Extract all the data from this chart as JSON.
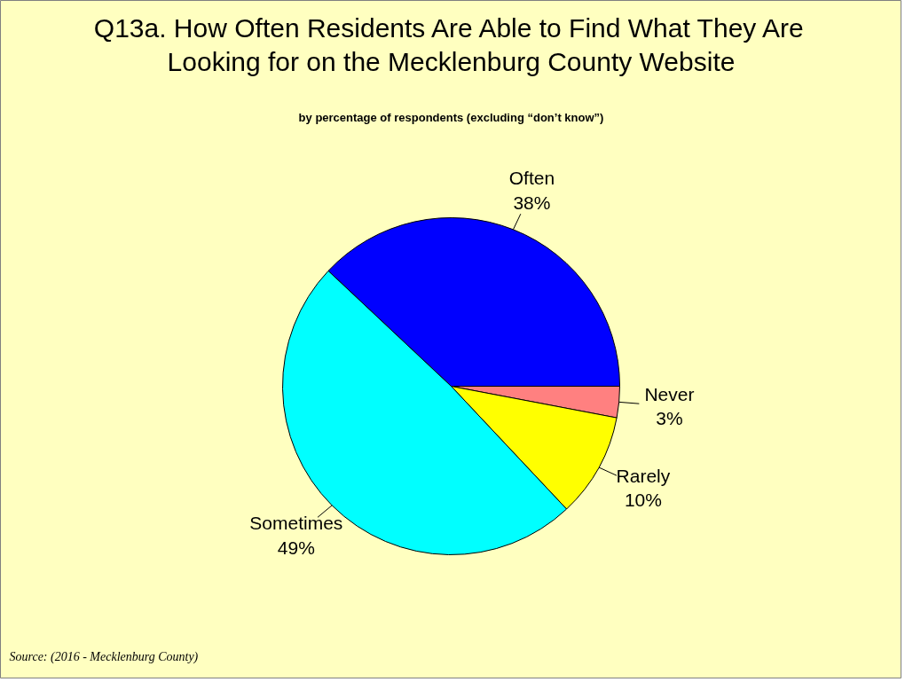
{
  "chart_data": {
    "type": "pie",
    "title": "Q13a. How Often Residents Are Able to Find What They Are\nLooking for on the Mecklenburg County Website",
    "subtitle": "by percentage of respondents (excluding “don’t know”)",
    "categories": [
      "Often",
      "Never",
      "Rarely",
      "Sometimes"
    ],
    "values": [
      38,
      3,
      10,
      49
    ],
    "colors": [
      "#0000ff",
      "#ff8080",
      "#ffff00",
      "#00ffff"
    ],
    "value_labels": [
      "38%",
      "3%",
      "10%",
      "49%"
    ],
    "annotations": [
      "Source:  (2016 - Mecklenburg County)"
    ]
  }
}
